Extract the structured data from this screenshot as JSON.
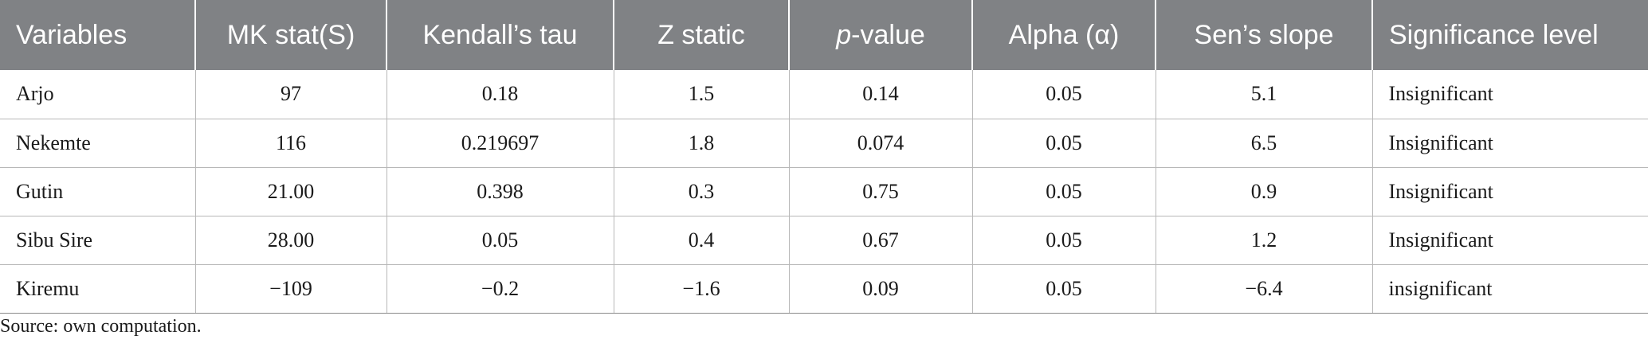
{
  "table": {
    "headers": [
      {
        "text": "Variables"
      },
      {
        "text": "MK stat(S)"
      },
      {
        "text": "Kendall’s tau"
      },
      {
        "text": "Z static"
      },
      {
        "prefix_italic": "p",
        "suffix": "-value"
      },
      {
        "text": "Alpha (α)"
      },
      {
        "text": "Sen’s slope"
      },
      {
        "text": "Significance level"
      }
    ],
    "rows": [
      [
        "Arjo",
        "97",
        "0.18",
        "1.5",
        "0.14",
        "0.05",
        "5.1",
        "Insignificant"
      ],
      [
        "Nekemte",
        "116",
        "0.219697",
        "1.8",
        "0.074",
        "0.05",
        "6.5",
        "Insignificant"
      ],
      [
        "Gutin",
        "21.00",
        "0.398",
        "0.3",
        "0.75",
        "0.05",
        "0.9",
        "Insignificant"
      ],
      [
        "Sibu Sire",
        "28.00",
        "0.05",
        "0.4",
        "0.67",
        "0.05",
        "1.2",
        "Insignificant"
      ],
      [
        "Kiremu",
        "−109",
        "−0.2",
        "−1.6",
        "0.09",
        "0.05",
        "−6.4",
        "insignificant"
      ]
    ]
  },
  "footnote": "Source: own computation."
}
